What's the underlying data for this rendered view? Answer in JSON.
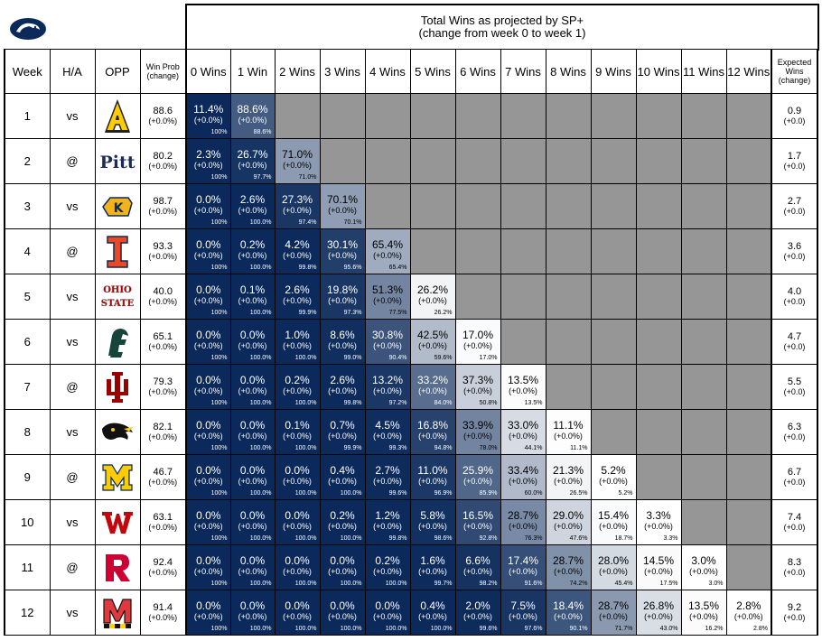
{
  "header": {
    "title_line1": "Total Wins as projected by SP+",
    "title_line2": "(change from week 0 to week 1)"
  },
  "columns": {
    "week": "Week",
    "ha": "H/A",
    "opp": "OPP",
    "winprob_line1": "Win Prob",
    "winprob_line2": "(change)",
    "expected_line1": "Expected",
    "expected_line2": "Wins",
    "expected_line3": "(change)",
    "wins": [
      "0 Wins",
      "1 Win",
      "2 Wins",
      "3 Wins",
      "4 Wins",
      "5 Wins",
      "6 Wins",
      "7 Wins",
      "8 Wins",
      "9 Wins",
      "10 Wins",
      "11 Wins",
      "12 Wins"
    ]
  },
  "colors": {
    "dark": "#0b2a5b",
    "gray": "#969696",
    "white": "#ffffff"
  },
  "chart_data": {
    "type": "table",
    "title": "Total Wins as projected by SP+",
    "subtitle": "(change from week 0 to week 1)",
    "rows": [
      {
        "week": "1",
        "ha": "vs",
        "opp_icon": "app-state-logo-icon",
        "win_prob": "88.6",
        "win_prob_chg": "(+0.0%)",
        "expected": "0.9",
        "expected_chg": "(+0.0)",
        "cells": [
          {
            "p": "11.4%",
            "c": "(+0.0%)",
            "cum": "100%"
          },
          {
            "p": "88.6%",
            "c": "(+0.0%)",
            "cum": "88.6%"
          }
        ]
      },
      {
        "week": "2",
        "ha": "@",
        "opp_icon": "pitt-logo-icon",
        "win_prob": "80.2",
        "win_prob_chg": "(+0.0%)",
        "expected": "1.7",
        "expected_chg": "(+0.0)",
        "cells": [
          {
            "p": "2.3%",
            "c": "(+0.0%)",
            "cum": "100%"
          },
          {
            "p": "26.7%",
            "c": "(+0.0%)",
            "cum": "97.7%"
          },
          {
            "p": "71.0%",
            "c": "(+0.0%)",
            "cum": "71.0%"
          }
        ]
      },
      {
        "week": "3",
        "ha": "vs",
        "opp_icon": "kent-state-logo-icon",
        "win_prob": "98.7",
        "win_prob_chg": "(+0.0%)",
        "expected": "2.7",
        "expected_chg": "(+0.0)",
        "cells": [
          {
            "p": "0.0%",
            "c": "(+0.0%)",
            "cum": "100%"
          },
          {
            "p": "2.6%",
            "c": "(+0.0%)",
            "cum": "100.0%"
          },
          {
            "p": "27.3%",
            "c": "(+0.0%)",
            "cum": "97.4%"
          },
          {
            "p": "70.1%",
            "c": "(+0.0%)",
            "cum": "70.1%"
          }
        ]
      },
      {
        "week": "4",
        "ha": "@",
        "opp_icon": "illinois-logo-icon",
        "win_prob": "93.3",
        "win_prob_chg": "(+0.0%)",
        "expected": "3.6",
        "expected_chg": "(+0.0)",
        "cells": [
          {
            "p": "0.0%",
            "c": "(+0.0%)",
            "cum": "100%"
          },
          {
            "p": "0.2%",
            "c": "(+0.0%)",
            "cum": "100.0%"
          },
          {
            "p": "4.2%",
            "c": "(+0.0%)",
            "cum": "99.8%"
          },
          {
            "p": "30.1%",
            "c": "(+0.0%)",
            "cum": "95.6%"
          },
          {
            "p": "65.4%",
            "c": "(+0.0%)",
            "cum": "65.4%"
          }
        ]
      },
      {
        "week": "5",
        "ha": "vs",
        "opp_icon": "ohio-state-logo-icon",
        "win_prob": "40.0",
        "win_prob_chg": "(+0.0%)",
        "expected": "4.0",
        "expected_chg": "(+0.0)",
        "cells": [
          {
            "p": "0.0%",
            "c": "(+0.0%)",
            "cum": "100%"
          },
          {
            "p": "0.1%",
            "c": "(+0.0%)",
            "cum": "100.0%"
          },
          {
            "p": "2.6%",
            "c": "(+0.0%)",
            "cum": "99.9%"
          },
          {
            "p": "19.8%",
            "c": "(+0.0%)",
            "cum": "97.3%"
          },
          {
            "p": "51.3%",
            "c": "(+0.0%)",
            "cum": "77.5%"
          },
          {
            "p": "26.2%",
            "c": "(+0.0%)",
            "cum": "26.2%"
          }
        ]
      },
      {
        "week": "6",
        "ha": "vs",
        "opp_icon": "michigan-state-logo-icon",
        "win_prob": "65.1",
        "win_prob_chg": "(+0.0%)",
        "expected": "4.7",
        "expected_chg": "(+0.0)",
        "cells": [
          {
            "p": "0.0%",
            "c": "(+0.0%)",
            "cum": "100%"
          },
          {
            "p": "0.0%",
            "c": "(+0.0%)",
            "cum": "100.0%"
          },
          {
            "p": "1.0%",
            "c": "(+0.0%)",
            "cum": "100.0%"
          },
          {
            "p": "8.6%",
            "c": "(+0.0%)",
            "cum": "99.0%"
          },
          {
            "p": "30.8%",
            "c": "(+0.0%)",
            "cum": "90.4%"
          },
          {
            "p": "42.5%",
            "c": "(+0.0%)",
            "cum": "59.6%"
          },
          {
            "p": "17.0%",
            "c": "(+0.0%)",
            "cum": "17.0%"
          }
        ]
      },
      {
        "week": "7",
        "ha": "@",
        "opp_icon": "indiana-logo-icon",
        "win_prob": "79.3",
        "win_prob_chg": "(+0.0%)",
        "expected": "5.5",
        "expected_chg": "(+0.0)",
        "cells": [
          {
            "p": "0.0%",
            "c": "(+0.0%)",
            "cum": "100%"
          },
          {
            "p": "0.0%",
            "c": "(+0.0%)",
            "cum": "100.0%"
          },
          {
            "p": "0.2%",
            "c": "(+0.0%)",
            "cum": "100.0%"
          },
          {
            "p": "2.6%",
            "c": "(+0.0%)",
            "cum": "99.8%"
          },
          {
            "p": "13.2%",
            "c": "(+0.0%)",
            "cum": "97.2%"
          },
          {
            "p": "33.2%",
            "c": "(+0.0%)",
            "cum": "84.0%"
          },
          {
            "p": "37.3%",
            "c": "(+0.0%)",
            "cum": "50.8%"
          },
          {
            "p": "13.5%",
            "c": "(+0.0%)",
            "cum": "13.5%"
          }
        ]
      },
      {
        "week": "8",
        "ha": "vs",
        "opp_icon": "iowa-logo-icon",
        "win_prob": "82.1",
        "win_prob_chg": "(+0.0%)",
        "expected": "6.3",
        "expected_chg": "(+0.0)",
        "cells": [
          {
            "p": "0.0%",
            "c": "(+0.0%)",
            "cum": "100%"
          },
          {
            "p": "0.0%",
            "c": "(+0.0%)",
            "cum": "100.0%"
          },
          {
            "p": "0.1%",
            "c": "(+0.0%)",
            "cum": "100.0%"
          },
          {
            "p": "0.7%",
            "c": "(+0.0%)",
            "cum": "99.9%"
          },
          {
            "p": "4.5%",
            "c": "(+0.0%)",
            "cum": "99.3%"
          },
          {
            "p": "16.8%",
            "c": "(+0.0%)",
            "cum": "94.8%"
          },
          {
            "p": "33.9%",
            "c": "(+0.0%)",
            "cum": "78.0%"
          },
          {
            "p": "33.0%",
            "c": "(+0.0%)",
            "cum": "44.1%"
          },
          {
            "p": "11.1%",
            "c": "(+0.0%)",
            "cum": "11.1%"
          }
        ]
      },
      {
        "week": "9",
        "ha": "@",
        "opp_icon": "michigan-logo-icon",
        "win_prob": "46.7",
        "win_prob_chg": "(+0.0%)",
        "expected": "6.7",
        "expected_chg": "(+0.0)",
        "cells": [
          {
            "p": "0.0%",
            "c": "(+0.0%)",
            "cum": "100%"
          },
          {
            "p": "0.0%",
            "c": "(+0.0%)",
            "cum": "100.0%"
          },
          {
            "p": "0.0%",
            "c": "(+0.0%)",
            "cum": "100.0%"
          },
          {
            "p": "0.4%",
            "c": "(+0.0%)",
            "cum": "100.0%"
          },
          {
            "p": "2.7%",
            "c": "(+0.0%)",
            "cum": "99.6%"
          },
          {
            "p": "11.0%",
            "c": "(+0.0%)",
            "cum": "96.9%"
          },
          {
            "p": "25.9%",
            "c": "(+0.0%)",
            "cum": "85.9%"
          },
          {
            "p": "33.4%",
            "c": "(+0.0%)",
            "cum": "60.0%"
          },
          {
            "p": "21.3%",
            "c": "(+0.0%)",
            "cum": "26.5%"
          },
          {
            "p": "5.2%",
            "c": "(+0.0%)",
            "cum": "5.2%"
          }
        ]
      },
      {
        "week": "10",
        "ha": "vs",
        "opp_icon": "wisconsin-logo-icon",
        "win_prob": "63.1",
        "win_prob_chg": "(+0.0%)",
        "expected": "7.4",
        "expected_chg": "(+0.0)",
        "cells": [
          {
            "p": "0.0%",
            "c": "(+0.0%)",
            "cum": "100%"
          },
          {
            "p": "0.0%",
            "c": "(+0.0%)",
            "cum": "100.0%"
          },
          {
            "p": "0.0%",
            "c": "(+0.0%)",
            "cum": "100.0%"
          },
          {
            "p": "0.2%",
            "c": "(+0.0%)",
            "cum": "100.0%"
          },
          {
            "p": "1.2%",
            "c": "(+0.0%)",
            "cum": "99.8%"
          },
          {
            "p": "5.8%",
            "c": "(+0.0%)",
            "cum": "98.6%"
          },
          {
            "p": "16.5%",
            "c": "(+0.0%)",
            "cum": "92.8%"
          },
          {
            "p": "28.7%",
            "c": "(+0.0%)",
            "cum": "76.3%"
          },
          {
            "p": "29.0%",
            "c": "(+0.0%)",
            "cum": "47.6%"
          },
          {
            "p": "15.4%",
            "c": "(+0.0%)",
            "cum": "18.7%"
          },
          {
            "p": "3.3%",
            "c": "(+0.0%)",
            "cum": "3.3%"
          }
        ]
      },
      {
        "week": "11",
        "ha": "@",
        "opp_icon": "rutgers-logo-icon",
        "win_prob": "92.4",
        "win_prob_chg": "(+0.0%)",
        "expected": "8.3",
        "expected_chg": "(+0.0)",
        "cells": [
          {
            "p": "0.0%",
            "c": "(+0.0%)",
            "cum": "100%"
          },
          {
            "p": "0.0%",
            "c": "(+0.0%)",
            "cum": "100.0%"
          },
          {
            "p": "0.0%",
            "c": "(+0.0%)",
            "cum": "100.0%"
          },
          {
            "p": "0.0%",
            "c": "(+0.0%)",
            "cum": "100.0%"
          },
          {
            "p": "0.2%",
            "c": "(+0.0%)",
            "cum": "100.0%"
          },
          {
            "p": "1.6%",
            "c": "(+0.0%)",
            "cum": "99.7%"
          },
          {
            "p": "6.6%",
            "c": "(+0.0%)",
            "cum": "98.2%"
          },
          {
            "p": "17.4%",
            "c": "(+0.0%)",
            "cum": "91.6%"
          },
          {
            "p": "28.7%",
            "c": "(+0.0%)",
            "cum": "74.2%"
          },
          {
            "p": "28.0%",
            "c": "(+0.0%)",
            "cum": "45.4%"
          },
          {
            "p": "14.5%",
            "c": "(+0.0%)",
            "cum": "17.5%"
          },
          {
            "p": "3.0%",
            "c": "(+0.0%)",
            "cum": "3.0%"
          }
        ]
      },
      {
        "week": "12",
        "ha": "vs",
        "opp_icon": "maryland-logo-icon",
        "win_prob": "91.4",
        "win_prob_chg": "(+0.0%)",
        "expected": "9.2",
        "expected_chg": "(+0.0)",
        "cells": [
          {
            "p": "0.0%",
            "c": "(+0.0%)",
            "cum": "100%"
          },
          {
            "p": "0.0%",
            "c": "(+0.0%)",
            "cum": "100.0%"
          },
          {
            "p": "0.0%",
            "c": "(+0.0%)",
            "cum": "100.0%"
          },
          {
            "p": "0.0%",
            "c": "(+0.0%)",
            "cum": "100.0%"
          },
          {
            "p": "0.0%",
            "c": "(+0.0%)",
            "cum": "100.0%"
          },
          {
            "p": "0.4%",
            "c": "(+0.0%)",
            "cum": "100.0%"
          },
          {
            "p": "2.0%",
            "c": "(+0.0%)",
            "cum": "99.6%"
          },
          {
            "p": "7.5%",
            "c": "(+0.0%)",
            "cum": "97.6%"
          },
          {
            "p": "18.4%",
            "c": "(+0.0%)",
            "cum": "90.1%"
          },
          {
            "p": "28.7%",
            "c": "(+0.0%)",
            "cum": "71.7%"
          },
          {
            "p": "26.8%",
            "c": "(+0.0%)",
            "cum": "43.0%"
          },
          {
            "p": "13.5%",
            "c": "(+0.0%)",
            "cum": "16.2%"
          },
          {
            "p": "2.8%",
            "c": "(+0.0%)",
            "cum": "2.8%"
          }
        ]
      }
    ]
  }
}
